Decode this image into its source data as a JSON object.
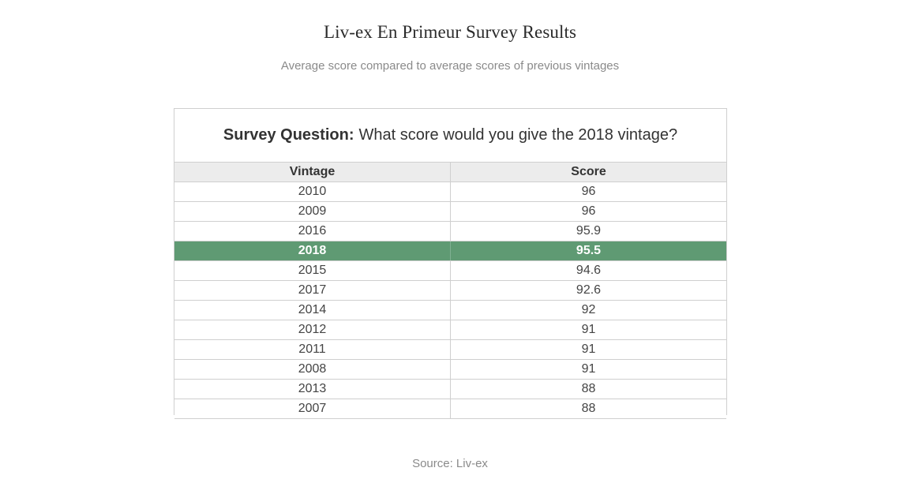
{
  "header": {
    "title": "Liv-ex En Primeur Survey Results",
    "subtitle": "Average score compared to average scores of previous vintages"
  },
  "survey": {
    "question_label": "Survey Question:",
    "question_text": "What score would you give the 2018 vintage?"
  },
  "footer": {
    "source": "Source: Liv-ex"
  },
  "colors": {
    "highlight_row": "#5f9a73",
    "header_row": "#ececec"
  },
  "chart_data": {
    "type": "table",
    "title": "Liv-ex En Primeur Survey Results",
    "subtitle": "Average score compared to average scores of previous vintages",
    "columns": [
      "Vintage",
      "Score"
    ],
    "highlight": "2018",
    "rows": [
      {
        "vintage": "2010",
        "score": "96"
      },
      {
        "vintage": "2009",
        "score": "96"
      },
      {
        "vintage": "2016",
        "score": "95.9"
      },
      {
        "vintage": "2018",
        "score": "95.5"
      },
      {
        "vintage": "2015",
        "score": "94.6"
      },
      {
        "vintage": "2017",
        "score": "92.6"
      },
      {
        "vintage": "2014",
        "score": "92"
      },
      {
        "vintage": "2012",
        "score": "91"
      },
      {
        "vintage": "2011",
        "score": "91"
      },
      {
        "vintage": "2008",
        "score": "91"
      },
      {
        "vintage": "2013",
        "score": "88"
      },
      {
        "vintage": "2007",
        "score": "88"
      }
    ]
  }
}
